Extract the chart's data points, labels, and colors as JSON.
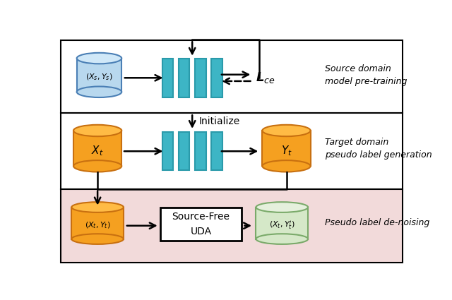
{
  "bg_top": "#ffffff",
  "bg_mid": "#ffffff",
  "bg_bot": "#f2dada",
  "teal_color": "#3db5c5",
  "teal_edge": "#2a9aaa",
  "orange_body": "#f5a020",
  "orange_top": "#ffbb45",
  "orange_edge": "#c87010",
  "blue_body": "#b8d8ee",
  "blue_top": "#d0e8f8",
  "blue_edge": "#4a7fb5",
  "green_body": "#d5e8c8",
  "green_top": "#e5f0dc",
  "green_edge": "#7aaa6a",
  "section1_label": "Source domain\nmodel pre-training",
  "section2_label": "Target domain\npseudo label generation",
  "section3_label": "Pseudo label de-noising",
  "initialize_label": "Initialize",
  "sfuda_label": "Source-Free\nUDA"
}
